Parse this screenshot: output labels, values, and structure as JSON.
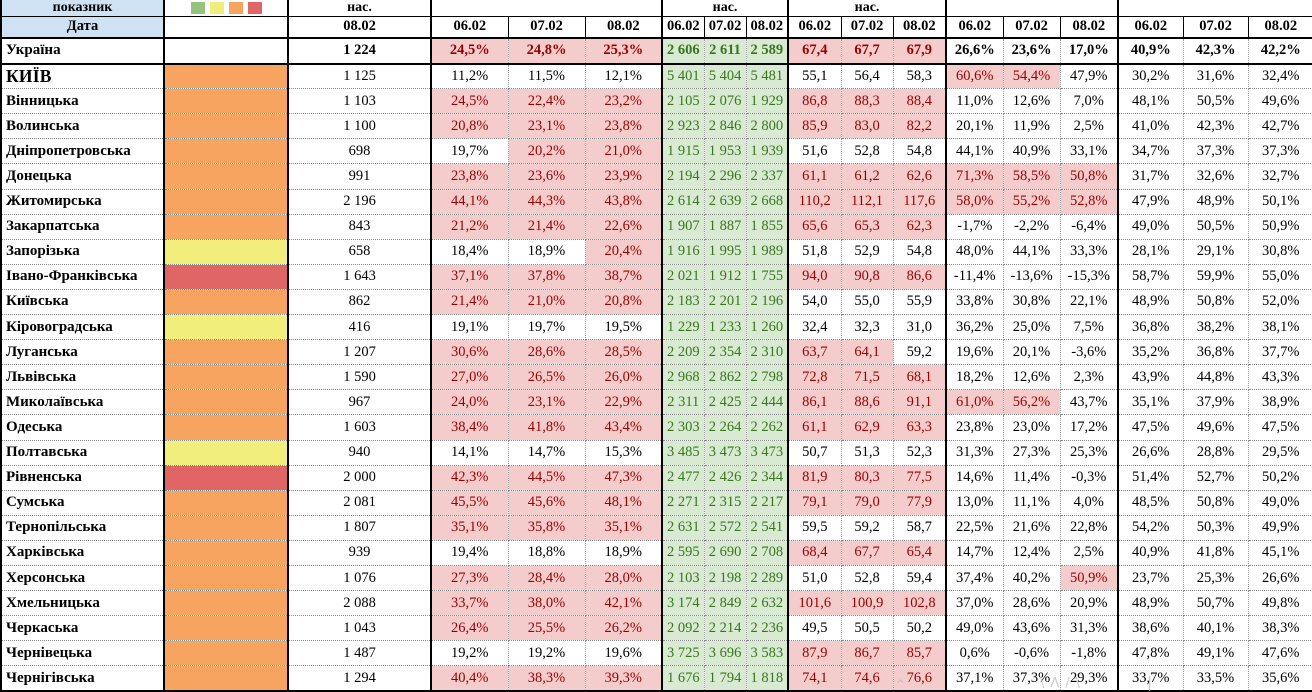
{
  "header": {
    "indicator_label": "показник",
    "date_label": "Дата",
    "nas_label": "нас.",
    "nas_date": "08.02",
    "dates": [
      "06.02",
      "07.02",
      "08.02"
    ],
    "legend_colors": [
      "#93c47d",
      "#f2ee7b",
      "#f6a45f",
      "#e06666"
    ]
  },
  "colors": {
    "header_bg": "#cfe2f3",
    "pink_bg": "#f4cccc",
    "red_text": "#990000",
    "green_bg": "#d9ead3",
    "green_text": "#38761d",
    "marker_orange": "#f6a45f",
    "marker_yellow": "#f2ee7b",
    "marker_red": "#e06666"
  },
  "style_rules": {
    "g1_pink_min": 20,
    "g3_pink_min": 60,
    "g4_pink_over": 50
  },
  "rows": [
    {
      "name": "Україна",
      "marker": null,
      "emphasis": true,
      "caps": false,
      "nas": "1 224",
      "g1": [
        "24,5%",
        "24,8%",
        "25,3%"
      ],
      "g2": [
        "2 606",
        "2 611",
        "2 589"
      ],
      "g3": [
        "67,4",
        "67,7",
        "67,9"
      ],
      "g4": [
        "26,6%",
        "23,6%",
        "17,0%"
      ],
      "g5": [
        "40,9%",
        "42,3%",
        "42,2%"
      ]
    },
    {
      "name": "КИЇВ",
      "marker": "orange",
      "emphasis": false,
      "caps": true,
      "nas": "1 125",
      "g1": [
        "11,2%",
        "11,5%",
        "12,1%"
      ],
      "g2": [
        "5 401",
        "5 404",
        "5 481"
      ],
      "g3": [
        "55,1",
        "56,4",
        "58,3"
      ],
      "g4": [
        "60,6%",
        "54,4%",
        "47,9%"
      ],
      "g5": [
        "30,2%",
        "31,6%",
        "32,4%"
      ]
    },
    {
      "name": "Вінницька",
      "marker": "orange",
      "emphasis": false,
      "caps": false,
      "nas": "1 103",
      "g1": [
        "24,5%",
        "22,4%",
        "23,2%"
      ],
      "g2": [
        "2 105",
        "2 076",
        "1 929"
      ],
      "g3": [
        "86,8",
        "88,3",
        "88,4"
      ],
      "g4": [
        "11,0%",
        "12,6%",
        "7,0%"
      ],
      "g5": [
        "48,1%",
        "50,5%",
        "49,6%"
      ]
    },
    {
      "name": "Волинська",
      "marker": "orange",
      "emphasis": false,
      "caps": false,
      "nas": "1 100",
      "g1": [
        "20,8%",
        "23,1%",
        "23,8%"
      ],
      "g2": [
        "2 923",
        "2 846",
        "2 800"
      ],
      "g3": [
        "85,9",
        "83,0",
        "82,2"
      ],
      "g4": [
        "20,1%",
        "11,9%",
        "2,5%"
      ],
      "g5": [
        "41,0%",
        "42,3%",
        "42,7%"
      ]
    },
    {
      "name": "Дніпропетровська",
      "marker": "orange",
      "emphasis": false,
      "caps": false,
      "nas": "698",
      "g1": [
        "19,7%",
        "20,2%",
        "21,0%"
      ],
      "g2": [
        "1 915",
        "1 953",
        "1 939"
      ],
      "g3": [
        "51,6",
        "52,8",
        "54,8"
      ],
      "g4": [
        "44,1%",
        "40,9%",
        "33,1%"
      ],
      "g5": [
        "34,7%",
        "37,3%",
        "37,3%"
      ]
    },
    {
      "name": "Донецька",
      "marker": "orange",
      "emphasis": false,
      "caps": false,
      "nas": "991",
      "g1": [
        "23,8%",
        "23,6%",
        "23,9%"
      ],
      "g2": [
        "2 194",
        "2 296",
        "2 337"
      ],
      "g3": [
        "61,1",
        "61,2",
        "62,6"
      ],
      "g4": [
        "71,3%",
        "58,5%",
        "50,8%"
      ],
      "g5": [
        "31,7%",
        "32,6%",
        "32,7%"
      ]
    },
    {
      "name": "Житомирська",
      "marker": "orange",
      "emphasis": false,
      "caps": false,
      "nas": "2 196",
      "g1": [
        "44,1%",
        "44,3%",
        "43,8%"
      ],
      "g2": [
        "2 614",
        "2 639",
        "2 668"
      ],
      "g3": [
        "110,2",
        "112,1",
        "117,6"
      ],
      "g4": [
        "58,0%",
        "55,2%",
        "52,8%"
      ],
      "g5": [
        "47,9%",
        "48,9%",
        "50,1%"
      ]
    },
    {
      "name": "Закарпатська",
      "marker": "orange",
      "emphasis": false,
      "caps": false,
      "nas": "843",
      "g1": [
        "21,2%",
        "21,4%",
        "22,6%"
      ],
      "g2": [
        "1 907",
        "1 887",
        "1 855"
      ],
      "g3": [
        "65,6",
        "65,3",
        "62,3"
      ],
      "g4": [
        "-1,7%",
        "-2,2%",
        "-6,4%"
      ],
      "g5": [
        "49,0%",
        "50,5%",
        "50,9%"
      ]
    },
    {
      "name": "Запорізька",
      "marker": "yellow",
      "emphasis": false,
      "caps": false,
      "nas": "658",
      "g1": [
        "18,4%",
        "18,9%",
        "20,4%"
      ],
      "g2": [
        "1 916",
        "1 995",
        "1 989"
      ],
      "g3": [
        "51,8",
        "52,9",
        "54,8"
      ],
      "g4": [
        "48,0%",
        "44,1%",
        "33,3%"
      ],
      "g5": [
        "28,1%",
        "29,1%",
        "30,8%"
      ]
    },
    {
      "name": "Івано-Франківська",
      "marker": "red",
      "emphasis": false,
      "caps": false,
      "nas": "1 643",
      "g1": [
        "37,1%",
        "37,8%",
        "38,7%"
      ],
      "g2": [
        "2 021",
        "1 912",
        "1 755"
      ],
      "g3": [
        "94,0",
        "90,8",
        "86,6"
      ],
      "g4": [
        "-11,4%",
        "-13,6%",
        "-15,3%"
      ],
      "g5": [
        "58,7%",
        "59,9%",
        "55,0%"
      ]
    },
    {
      "name": "Київська",
      "marker": "orange",
      "emphasis": false,
      "caps": false,
      "nas": "862",
      "g1": [
        "21,4%",
        "21,0%",
        "20,8%"
      ],
      "g2": [
        "2 183",
        "2 201",
        "2 196"
      ],
      "g3": [
        "54,0",
        "55,0",
        "55,9"
      ],
      "g4": [
        "33,8%",
        "30,8%",
        "22,1%"
      ],
      "g5": [
        "48,9%",
        "50,8%",
        "52,0%"
      ]
    },
    {
      "name": "Кіровоградська",
      "marker": "yellow",
      "emphasis": false,
      "caps": false,
      "nas": "416",
      "g1": [
        "19,1%",
        "19,7%",
        "19,5%"
      ],
      "g2": [
        "1 229",
        "1 233",
        "1 260"
      ],
      "g3": [
        "32,4",
        "32,3",
        "31,0"
      ],
      "g4": [
        "36,2%",
        "25,0%",
        "7,5%"
      ],
      "g5": [
        "36,8%",
        "38,2%",
        "38,1%"
      ]
    },
    {
      "name": "Луганська",
      "marker": "orange",
      "emphasis": false,
      "caps": false,
      "nas": "1 207",
      "g1": [
        "30,6%",
        "28,6%",
        "28,5%"
      ],
      "g2": [
        "2 209",
        "2 354",
        "2 310"
      ],
      "g3": [
        "63,7",
        "64,1",
        "59,2"
      ],
      "g4": [
        "19,6%",
        "20,1%",
        "-3,6%"
      ],
      "g5": [
        "35,2%",
        "36,8%",
        "37,7%"
      ]
    },
    {
      "name": "Львівська",
      "marker": "orange",
      "emphasis": false,
      "caps": false,
      "nas": "1 590",
      "g1": [
        "27,0%",
        "26,5%",
        "26,0%"
      ],
      "g2": [
        "2 968",
        "2 862",
        "2 798"
      ],
      "g3": [
        "72,8",
        "71,5",
        "68,1"
      ],
      "g4": [
        "18,2%",
        "12,6%",
        "2,3%"
      ],
      "g5": [
        "43,9%",
        "44,8%",
        "43,3%"
      ]
    },
    {
      "name": "Миколаївська",
      "marker": "orange",
      "emphasis": false,
      "caps": false,
      "nas": "967",
      "g1": [
        "24,0%",
        "23,1%",
        "22,9%"
      ],
      "g2": [
        "2 311",
        "2 425",
        "2 444"
      ],
      "g3": [
        "86,1",
        "88,6",
        "91,1"
      ],
      "g4": [
        "61,0%",
        "56,2%",
        "43,7%"
      ],
      "g5": [
        "35,1%",
        "37,9%",
        "38,9%"
      ]
    },
    {
      "name": "Одеська",
      "marker": "orange",
      "emphasis": false,
      "caps": false,
      "nas": "1 603",
      "g1": [
        "38,4%",
        "41,8%",
        "43,4%"
      ],
      "g2": [
        "2 303",
        "2 264",
        "2 262"
      ],
      "g3": [
        "61,1",
        "62,9",
        "63,3"
      ],
      "g4": [
        "23,8%",
        "23,0%",
        "17,2%"
      ],
      "g5": [
        "47,5%",
        "49,6%",
        "47,5%"
      ]
    },
    {
      "name": "Полтавська",
      "marker": "yellow",
      "emphasis": false,
      "caps": false,
      "nas": "940",
      "g1": [
        "14,1%",
        "14,7%",
        "15,3%"
      ],
      "g2": [
        "3 485",
        "3 473",
        "3 473"
      ],
      "g3": [
        "50,7",
        "51,3",
        "52,3"
      ],
      "g4": [
        "31,3%",
        "27,3%",
        "25,3%"
      ],
      "g5": [
        "26,6%",
        "28,8%",
        "29,5%"
      ]
    },
    {
      "name": "Рівненська",
      "marker": "red",
      "emphasis": false,
      "caps": false,
      "nas": "2 000",
      "g1": [
        "42,3%",
        "44,5%",
        "47,3%"
      ],
      "g2": [
        "2 477",
        "2 426",
        "2 344"
      ],
      "g3": [
        "81,9",
        "80,3",
        "77,5"
      ],
      "g4": [
        "14,6%",
        "11,4%",
        "-0,3%"
      ],
      "g5": [
        "51,4%",
        "52,7%",
        "50,2%"
      ]
    },
    {
      "name": "Сумська",
      "marker": "orange",
      "emphasis": false,
      "caps": false,
      "nas": "2 081",
      "g1": [
        "45,5%",
        "45,6%",
        "48,1%"
      ],
      "g2": [
        "2 271",
        "2 315",
        "2 217"
      ],
      "g3": [
        "79,1",
        "79,0",
        "77,9"
      ],
      "g4": [
        "13,0%",
        "11,1%",
        "4,0%"
      ],
      "g5": [
        "48,5%",
        "50,8%",
        "49,0%"
      ]
    },
    {
      "name": "Тернопільська",
      "marker": "orange",
      "emphasis": false,
      "caps": false,
      "nas": "1 807",
      "g1": [
        "35,1%",
        "35,8%",
        "35,1%"
      ],
      "g2": [
        "2 631",
        "2 572",
        "2 541"
      ],
      "g3": [
        "59,5",
        "59,2",
        "58,7"
      ],
      "g4": [
        "22,5%",
        "21,6%",
        "22,8%"
      ],
      "g5": [
        "54,2%",
        "50,3%",
        "49,9%"
      ]
    },
    {
      "name": "Харківська",
      "marker": "orange",
      "emphasis": false,
      "caps": false,
      "nas": "939",
      "g1": [
        "19,4%",
        "18,8%",
        "18,9%"
      ],
      "g2": [
        "2 595",
        "2 690",
        "2 708"
      ],
      "g3": [
        "68,4",
        "67,7",
        "65,4"
      ],
      "g4": [
        "14,7%",
        "12,4%",
        "2,5%"
      ],
      "g5": [
        "40,9%",
        "41,8%",
        "45,1%"
      ]
    },
    {
      "name": "Херсонська",
      "marker": "orange",
      "emphasis": false,
      "caps": false,
      "nas": "1 076",
      "g1": [
        "27,3%",
        "28,4%",
        "28,0%"
      ],
      "g2": [
        "2 103",
        "2 198",
        "2 289"
      ],
      "g3": [
        "51,0",
        "52,8",
        "59,4"
      ],
      "g4": [
        "37,4%",
        "40,2%",
        "50,9%"
      ],
      "g5": [
        "23,7%",
        "25,3%",
        "26,6%"
      ]
    },
    {
      "name": "Хмельницька",
      "marker": "orange",
      "emphasis": false,
      "caps": false,
      "nas": "2 088",
      "g1": [
        "33,7%",
        "38,0%",
        "42,1%"
      ],
      "g2": [
        "3 174",
        "2 849",
        "2 632"
      ],
      "g3": [
        "101,6",
        "100,9",
        "102,8"
      ],
      "g4": [
        "37,0%",
        "28,6%",
        "20,9%"
      ],
      "g5": [
        "48,9%",
        "50,7%",
        "49,8%"
      ]
    },
    {
      "name": "Черкаська",
      "marker": "orange",
      "emphasis": false,
      "caps": false,
      "nas": "1 043",
      "g1": [
        "26,4%",
        "25,5%",
        "26,2%"
      ],
      "g2": [
        "2 092",
        "2 214",
        "2 236"
      ],
      "g3": [
        "49,5",
        "50,5",
        "50,2"
      ],
      "g4": [
        "49,0%",
        "43,6%",
        "31,3%"
      ],
      "g5": [
        "38,6%",
        "40,1%",
        "38,3%"
      ]
    },
    {
      "name": "Чернівецька",
      "marker": "orange",
      "emphasis": false,
      "caps": false,
      "nas": "1 487",
      "g1": [
        "19,2%",
        "19,2%",
        "19,6%"
      ],
      "g2": [
        "3 725",
        "3 696",
        "3 583"
      ],
      "g3": [
        "87,9",
        "86,7",
        "85,7"
      ],
      "g4": [
        "0,6%",
        "-0,6%",
        "-1,8%"
      ],
      "g5": [
        "47,8%",
        "49,1%",
        "47,6%"
      ]
    },
    {
      "name": "Чернігівська",
      "marker": "orange",
      "emphasis": false,
      "caps": false,
      "nas": "1 294",
      "g1": [
        "40,4%",
        "38,3%",
        "39,3%"
      ],
      "g2": [
        "1 676",
        "1 794",
        "1 818"
      ],
      "g3": [
        "74,1",
        "74,6",
        "76,6"
      ],
      "g4": [
        "37,1%",
        "37,3%",
        "29,3%"
      ],
      "g5": [
        "33,7%",
        "33,5%",
        "35,6%"
      ]
    }
  ]
}
